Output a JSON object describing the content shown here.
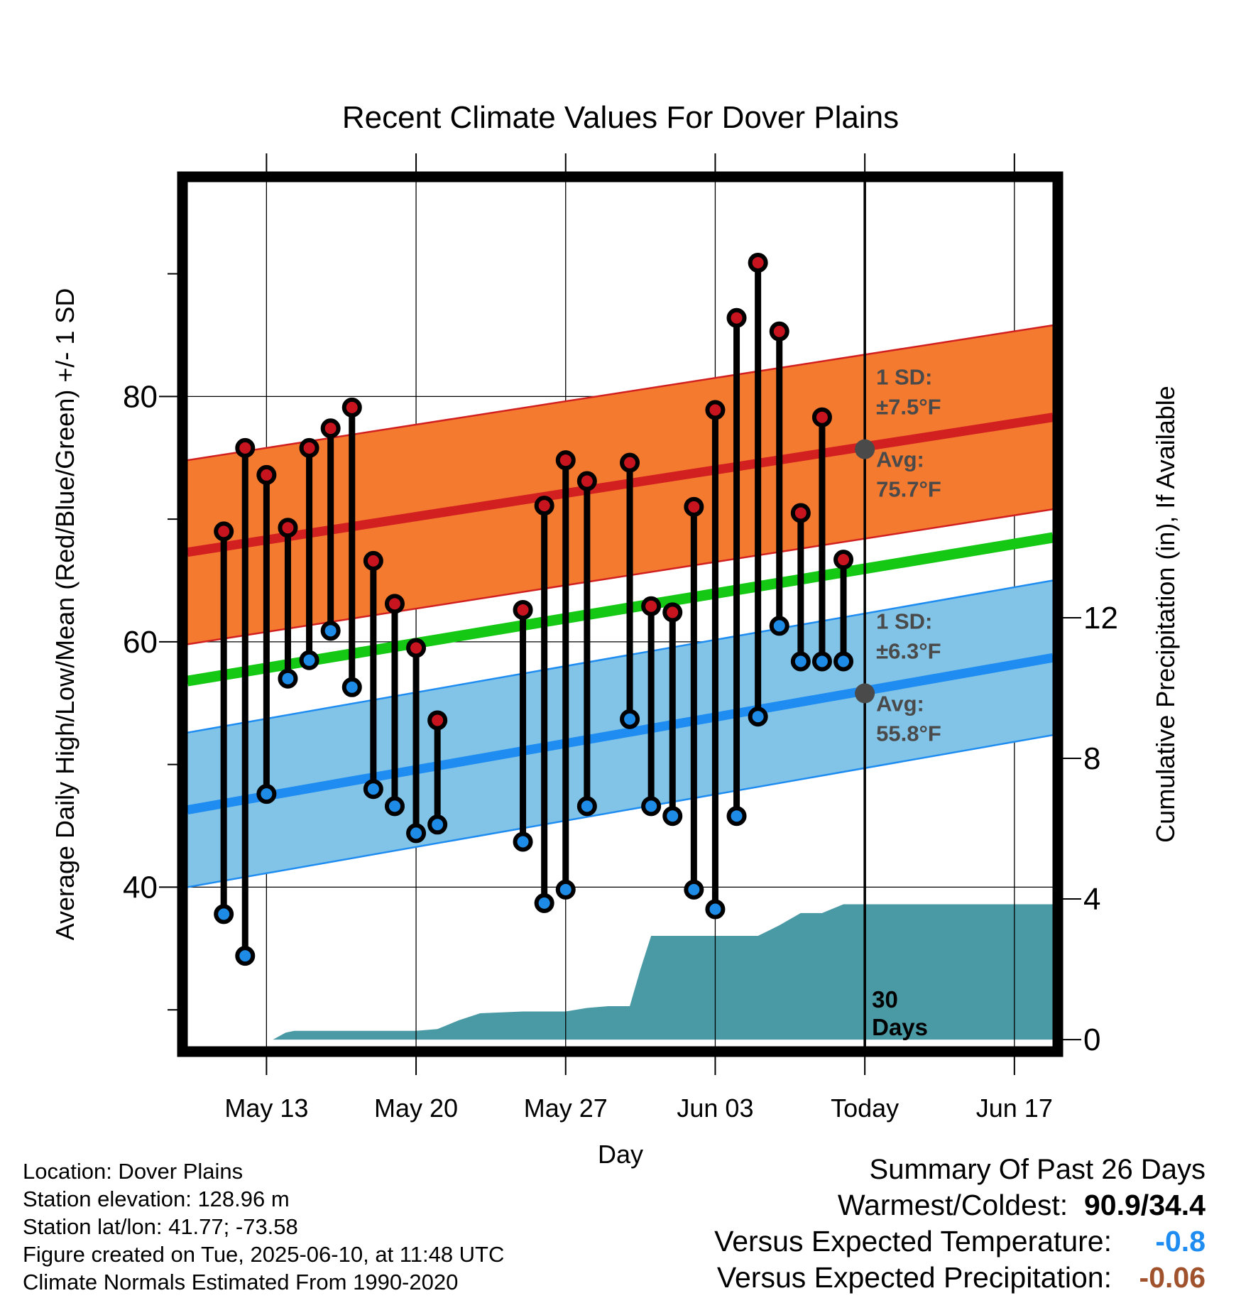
{
  "chart_data": {
    "type": "range",
    "title": "Recent Climate Values For Dover Plains",
    "xlabel": "Day",
    "ylabel_left": "Average Daily High/Low/Mean (Red/Blue/Green) +/- 1 SD",
    "ylabel_right": "Cumulative Precipitation (in), If Available",
    "x_ticks": [
      "May 13",
      "May 20",
      "May 27",
      "Jun 03",
      "Today",
      "Jun 17"
    ],
    "x_tick_days": [
      13,
      20,
      27,
      34,
      41,
      48
    ],
    "x_range": [
      9.3,
      49.8
    ],
    "y_left_ticks": [
      40,
      60,
      80
    ],
    "y_left_range": [
      27,
      97.5
    ],
    "y_right_ticks": [
      0,
      4,
      8,
      12
    ],
    "y_right_range": [
      -0.2,
      24.4
    ],
    "grid": true,
    "today_day": 41,
    "period_label": "30\nDays",
    "daily": {
      "days": [
        11,
        12,
        13,
        14,
        15,
        16,
        17,
        18,
        19,
        20,
        21,
        25,
        26,
        27,
        28,
        30,
        31,
        32,
        33,
        34,
        35,
        36,
        37,
        38,
        39,
        40
      ],
      "highs": [
        69.0,
        75.8,
        73.6,
        69.3,
        75.8,
        77.4,
        79.1,
        66.6,
        63.1,
        59.5,
        53.6,
        62.6,
        71.1,
        74.8,
        73.1,
        74.6,
        62.9,
        62.4,
        71.0,
        78.9,
        86.4,
        90.9,
        85.3,
        70.5,
        78.3,
        66.7
      ],
      "lows": [
        37.8,
        34.4,
        47.6,
        57.0,
        58.5,
        60.9,
        56.3,
        48.0,
        46.6,
        44.4,
        45.1,
        43.7,
        38.7,
        39.8,
        46.6,
        53.7,
        46.6,
        45.8,
        39.8,
        38.2,
        45.8,
        53.9,
        61.3,
        58.4,
        58.4,
        58.4
      ]
    },
    "normals": {
      "high_avg_start": 67.3,
      "high_avg_end": 78.3,
      "high_sd": 7.5,
      "low_avg_start": 46.3,
      "low_avg_end": 58.7,
      "low_sd": 6.3,
      "mean_start": 56.8,
      "mean_end": 68.5
    },
    "today_values": {
      "high_avg": 75.7,
      "low_avg": 55.8,
      "high_sd_label": "1 SD:",
      "high_sd_text": "±7.5°F",
      "high_avg_label": "Avg:",
      "high_avg_text": "75.7°F",
      "low_sd_label": "1 SD:",
      "low_sd_text": "±6.3°F",
      "low_avg_label": "Avg:",
      "low_avg_text": "55.8°F"
    },
    "precip_cumulative": {
      "days": [
        9.3,
        13.3,
        13.9,
        14.3,
        16.0,
        17.2,
        20.0,
        21.0,
        22.0,
        23.0,
        25.0,
        26.0,
        27.0,
        28.0,
        29.0,
        30.0,
        30.5,
        31.0,
        32.0,
        33.0,
        34.0,
        35.0,
        36.0,
        36.5,
        37.0,
        38.0,
        39.0,
        40.0,
        41.0,
        49.8
      ],
      "values": [
        0,
        0,
        0.2,
        0.25,
        0.25,
        0.25,
        0.25,
        0.3,
        0.55,
        0.75,
        0.8,
        0.8,
        0.8,
        0.9,
        0.95,
        0.95,
        2.0,
        2.95,
        2.95,
        2.95,
        2.95,
        2.95,
        2.95,
        3.1,
        3.25,
        3.6,
        3.6,
        3.85,
        3.85,
        3.85
      ]
    },
    "colors": {
      "high_band": "#F47A30",
      "high_line": "#D22020",
      "low_band": "#82C4E8",
      "low_line": "#1E8CF0",
      "mean_line": "#14C814",
      "precip": "#4A9AA5",
      "high_dot": "#C8141E",
      "low_dot": "#1E8CE6",
      "annotation": "#4A4A4A"
    }
  },
  "footer": {
    "location": "Location: Dover Plains",
    "elevation": "Station elevation: 128.96 m",
    "latlon": "Station lat/lon: 41.77; -73.58",
    "created": "Figure created on Tue, 2025-06-10, at 11:48 UTC",
    "normals": "Climate Normals Estimated From 1990-2020"
  },
  "summary": {
    "title": "Summary Of Past 26 Days",
    "warm_cold_label": "Warmest/Coldest:",
    "warm_cold_value": "90.9/34.4",
    "temp_label": "Versus Expected Temperature:",
    "temp_value": "-0.8",
    "temp_color": "#1E8CF0",
    "precip_label": "Versus Expected Precipitation:",
    "precip_value": "-0.06",
    "precip_color": "#A0522D"
  }
}
